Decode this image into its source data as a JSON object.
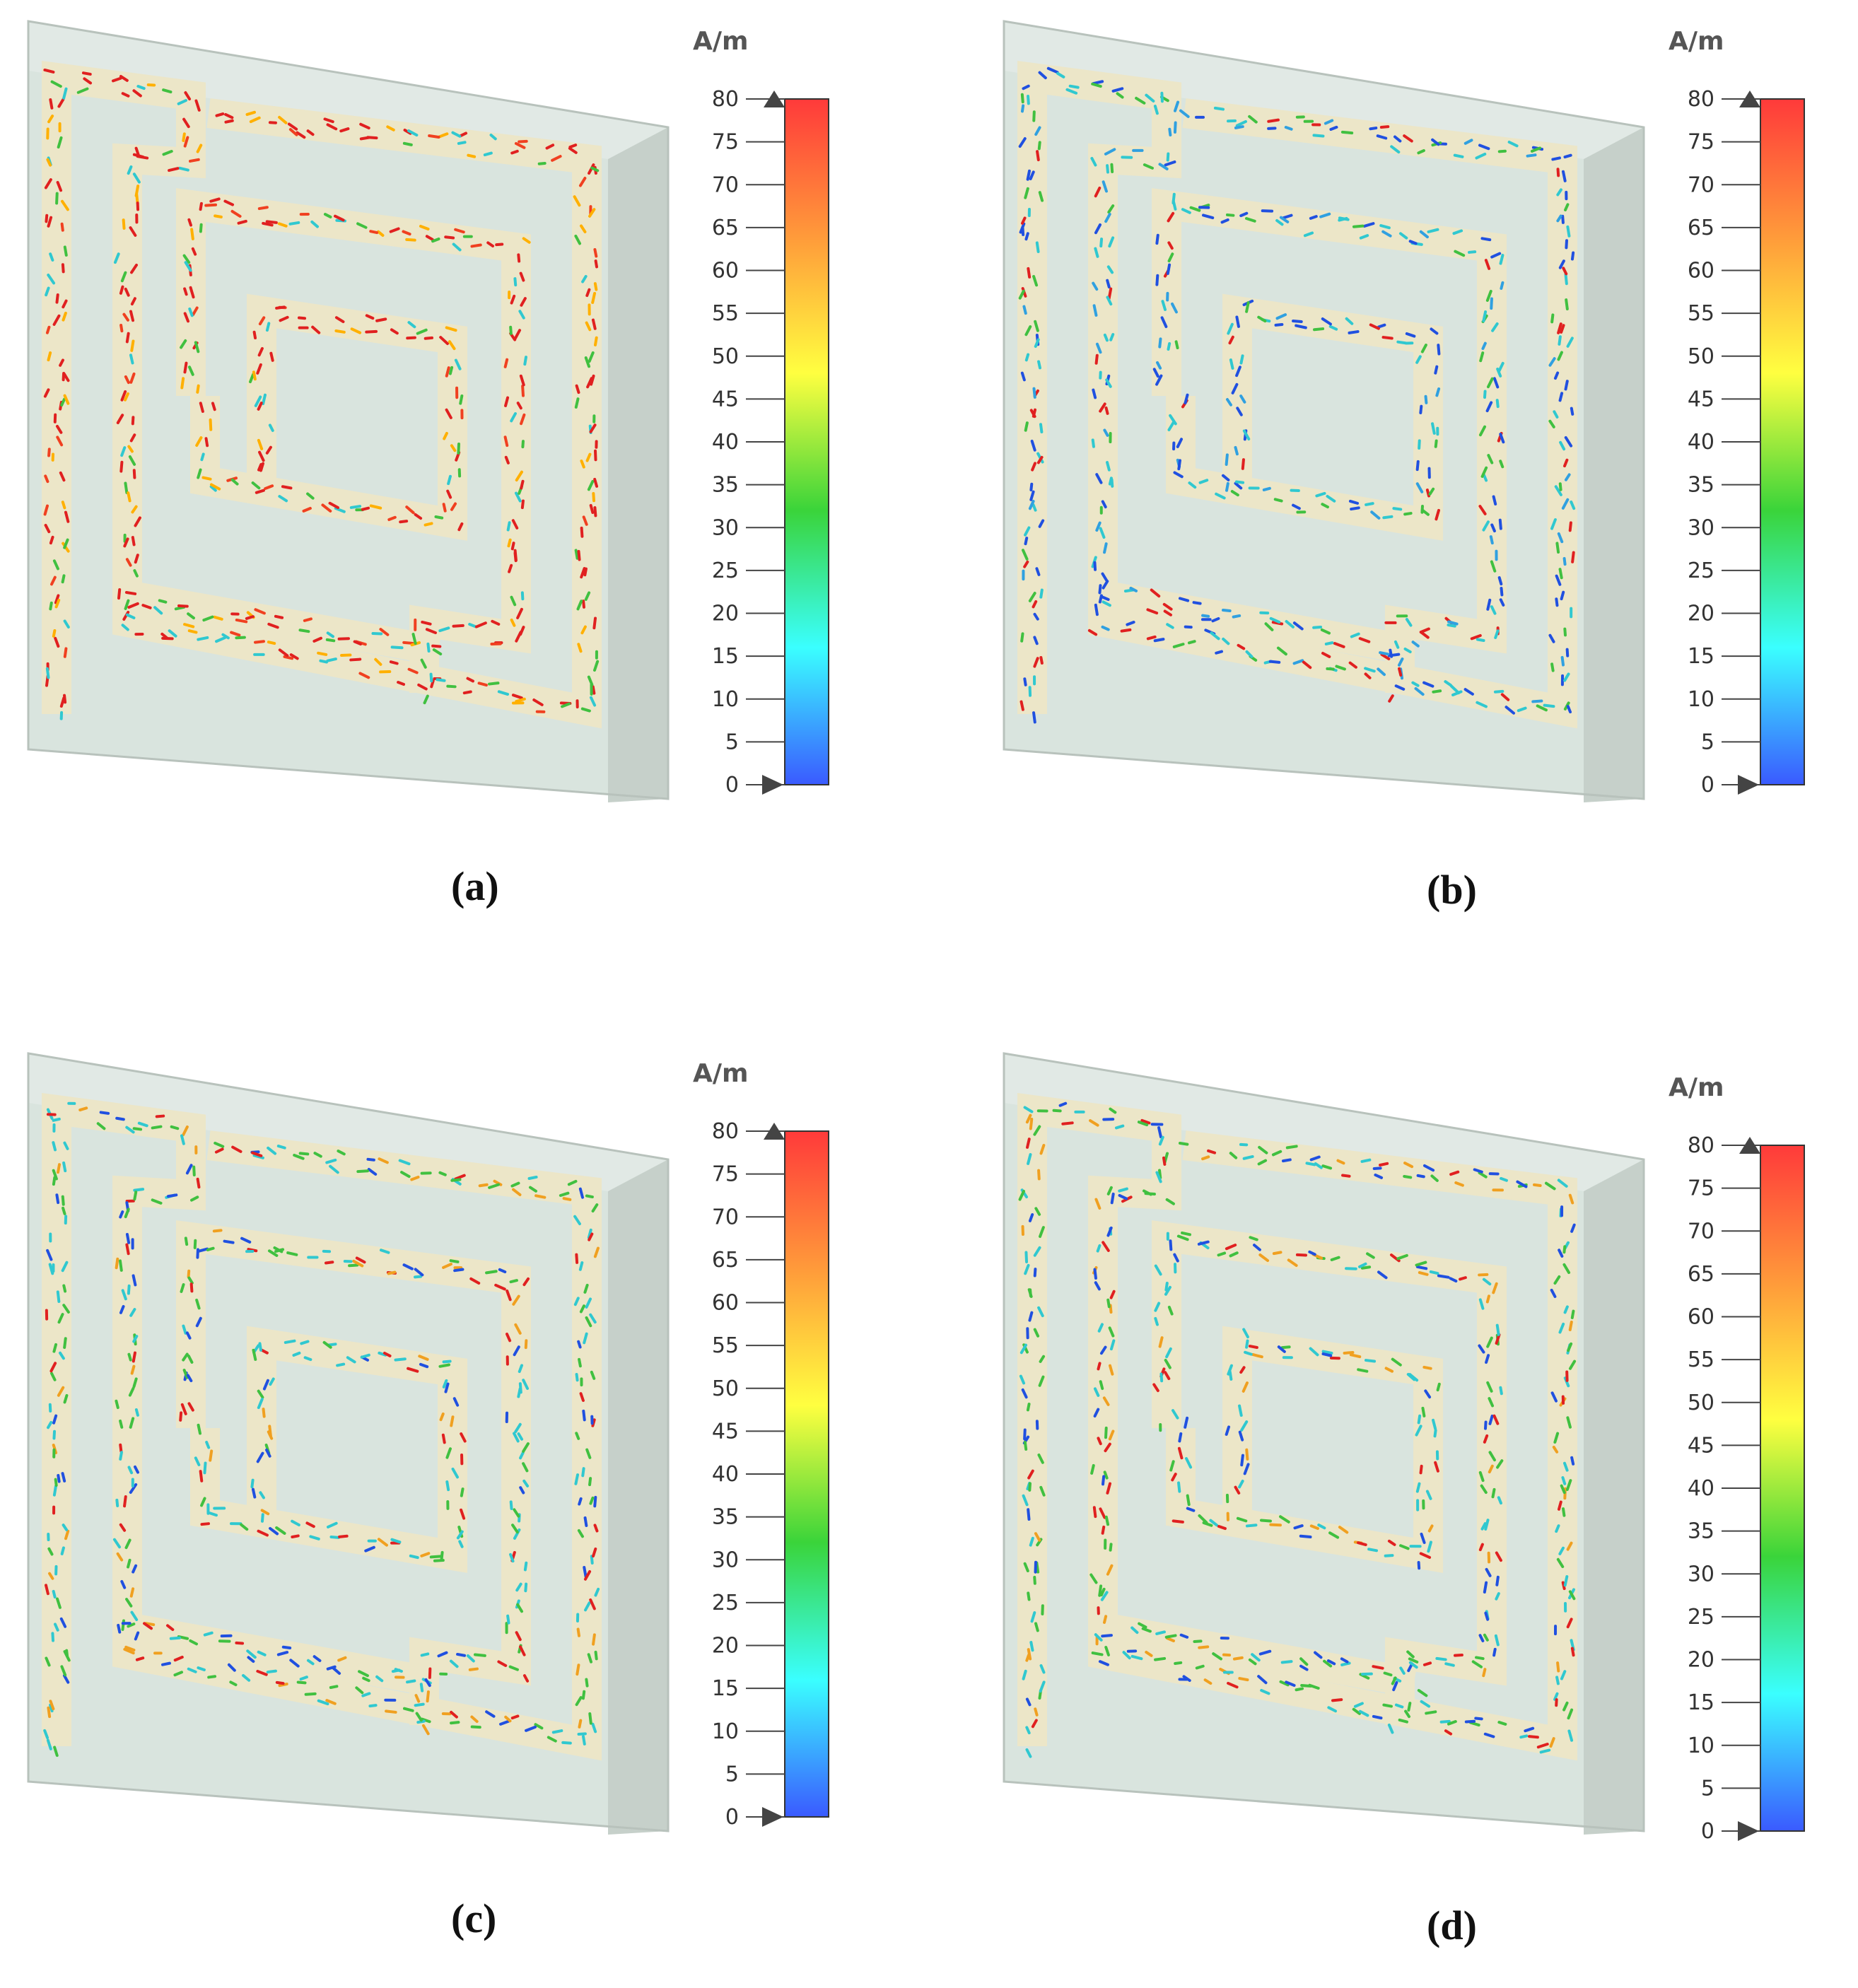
{
  "panels": [
    {
      "caption": "(a)",
      "intensity": "high"
    },
    {
      "caption": "(b)",
      "intensity": "low"
    },
    {
      "caption": "(c)",
      "intensity": "medium"
    },
    {
      "caption": "(d)",
      "intensity": "medium"
    }
  ],
  "colorbar": {
    "unit": "A/m",
    "ticks": [
      "80",
      "75",
      "70",
      "65",
      "60",
      "55",
      "50",
      "45",
      "40",
      "35",
      "30",
      "25",
      "20",
      "15",
      "10",
      "5",
      "0"
    ],
    "min": 0,
    "max": 80,
    "colors": [
      "#ff3a3a",
      "#ff9a3a",
      "#ffff40",
      "#3ad43a",
      "#3affff",
      "#3a5aff"
    ]
  },
  "colors": {
    "substrate": "#d9e4de",
    "substrate_side": "#c6d0ca",
    "substrate_top": "#e6ede9",
    "trace": "#ece6c8"
  }
}
